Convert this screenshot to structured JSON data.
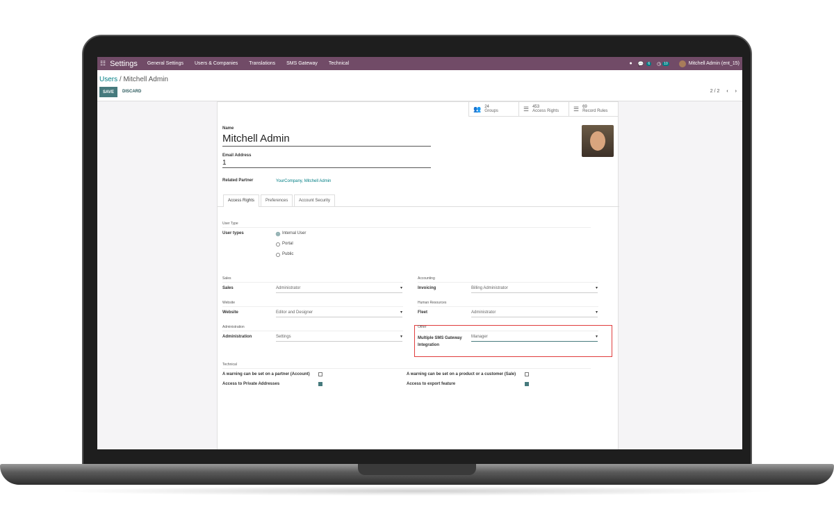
{
  "navbar": {
    "brand": "Settings",
    "menu": [
      "General Settings",
      "Users & Companies",
      "Translations",
      "SMS Gateway",
      "Technical"
    ],
    "chat_count": "6",
    "activity_count": "10",
    "user": "Mitchell Admin (ent_15)"
  },
  "breadcrumb": {
    "parent": "Users",
    "current": "Mitchell Admin"
  },
  "buttons": {
    "save": "SAVE",
    "discard": "DISCARD"
  },
  "pager": "2 / 2",
  "smart_buttons": [
    {
      "count": "24",
      "label": "Groups"
    },
    {
      "count": "453",
      "label": "Access Rights"
    },
    {
      "count": "69",
      "label": "Record Rules"
    }
  ],
  "form": {
    "name_label": "Name",
    "name": "Mitchell Admin",
    "email_label": "Email Address",
    "email": "1",
    "partner_label": "Related Partner",
    "partner": "YourCompany, Mitchell Admin"
  },
  "tabs": [
    "Access Rights",
    "Preferences",
    "Account Security"
  ],
  "user_type": {
    "section": "User Type",
    "label": "User types",
    "options": [
      {
        "label": "Internal User",
        "selected": true
      },
      {
        "label": "Portal",
        "selected": false
      },
      {
        "label": "Public",
        "selected": false
      }
    ]
  },
  "groups": [
    {
      "section": "Sales",
      "label": "Sales",
      "value": "Administrator"
    },
    {
      "section": "Accounting",
      "label": "Invoicing",
      "value": "Billing Administrator"
    },
    {
      "section": "Website",
      "label": "Website",
      "value": "Editor and Designer"
    },
    {
      "section": "Human Resources",
      "label": "Fleet",
      "value": "Administrator"
    },
    {
      "section": "Administration",
      "label": "Administration",
      "value": "Settings"
    },
    {
      "section": "Other",
      "label": "Multiple SMS Gateway Integration",
      "value": "Manager"
    }
  ],
  "technical": {
    "section": "Technical",
    "items": [
      {
        "label": "A warning can be set on a partner (Account)",
        "checked": false
      },
      {
        "label": "A warning can be set on a product or a customer (Sale)",
        "checked": false
      },
      {
        "label": "Access to Private Addresses",
        "checked": true
      },
      {
        "label": "Access to export feature",
        "checked": true
      }
    ]
  },
  "colors": {
    "navbar": "#714b67",
    "primary": "#467a7d",
    "highlight": "#e03c3c"
  }
}
